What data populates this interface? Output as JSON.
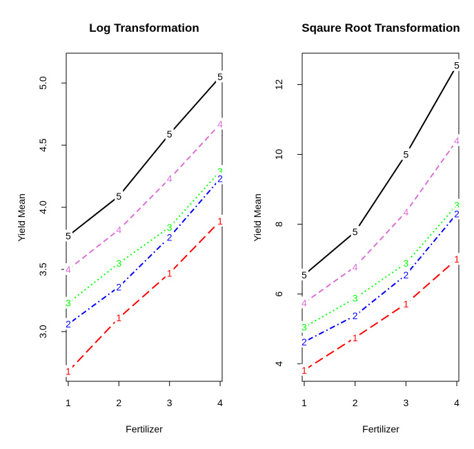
{
  "chart_data": [
    {
      "type": "line",
      "title": "Log Transformation",
      "xlabel": "Fertilizer",
      "ylabel": "Yield Mean",
      "x": [
        1,
        2,
        3,
        4
      ],
      "xticks": [
        "1",
        "2",
        "3",
        "4"
      ],
      "xlim": [
        0.96,
        4.04
      ],
      "ylim": [
        2.6,
        5.24
      ],
      "yticks": [
        3.0,
        3.5,
        4.0,
        4.5,
        5.0
      ],
      "ytick_labels": [
        "3.0",
        "3.5",
        "4.0",
        "4.5",
        "5.0"
      ],
      "grid": false,
      "legend": "none",
      "series": [
        {
          "label": "5",
          "color": "#000000",
          "style": "solid",
          "values": [
            3.77,
            4.09,
            4.59,
            5.05
          ]
        },
        {
          "label": "4",
          "color": "#DA70D6",
          "style": "dashed",
          "values": [
            3.5,
            3.82,
            4.23,
            4.67
          ]
        },
        {
          "label": "3",
          "color": "#00FF00",
          "style": "dotted",
          "values": [
            3.23,
            3.55,
            3.84,
            4.29
          ]
        },
        {
          "label": "2",
          "color": "#0000FF",
          "style": "dotdash",
          "values": [
            3.06,
            3.36,
            3.76,
            4.23
          ]
        },
        {
          "label": "1",
          "color": "#FF0000",
          "style": "longdash",
          "values": [
            2.68,
            3.11,
            3.47,
            3.89
          ]
        }
      ]
    },
    {
      "type": "line",
      "title": "Sqaure Root Transformation",
      "xlabel": "Fertilizer",
      "ylabel": "Yield Mean",
      "x": [
        1,
        2,
        3,
        4
      ],
      "xticks": [
        "1",
        "2",
        "3",
        "4"
      ],
      "xlim": [
        0.96,
        4.04
      ],
      "ylim": [
        3.5,
        12.9
      ],
      "yticks": [
        4,
        6,
        8,
        10,
        12
      ],
      "ytick_labels": [
        "4",
        "6",
        "8",
        "10",
        "12"
      ],
      "grid": false,
      "legend": "none",
      "series": [
        {
          "label": "5",
          "color": "#000000",
          "style": "solid",
          "values": [
            6.55,
            7.78,
            10.0,
            12.55
          ]
        },
        {
          "label": "4",
          "color": "#DA70D6",
          "style": "dashed",
          "values": [
            5.75,
            6.78,
            8.35,
            10.4
          ]
        },
        {
          "label": "3",
          "color": "#00FF00",
          "style": "dotted",
          "values": [
            5.05,
            5.88,
            6.88,
            8.55
          ]
        },
        {
          "label": "2",
          "color": "#0000FF",
          "style": "dotdash",
          "values": [
            4.63,
            5.38,
            6.55,
            8.3
          ]
        },
        {
          "label": "1",
          "color": "#FF0000",
          "style": "longdash",
          "values": [
            3.82,
            4.75,
            5.72,
            7.0
          ]
        }
      ]
    }
  ]
}
